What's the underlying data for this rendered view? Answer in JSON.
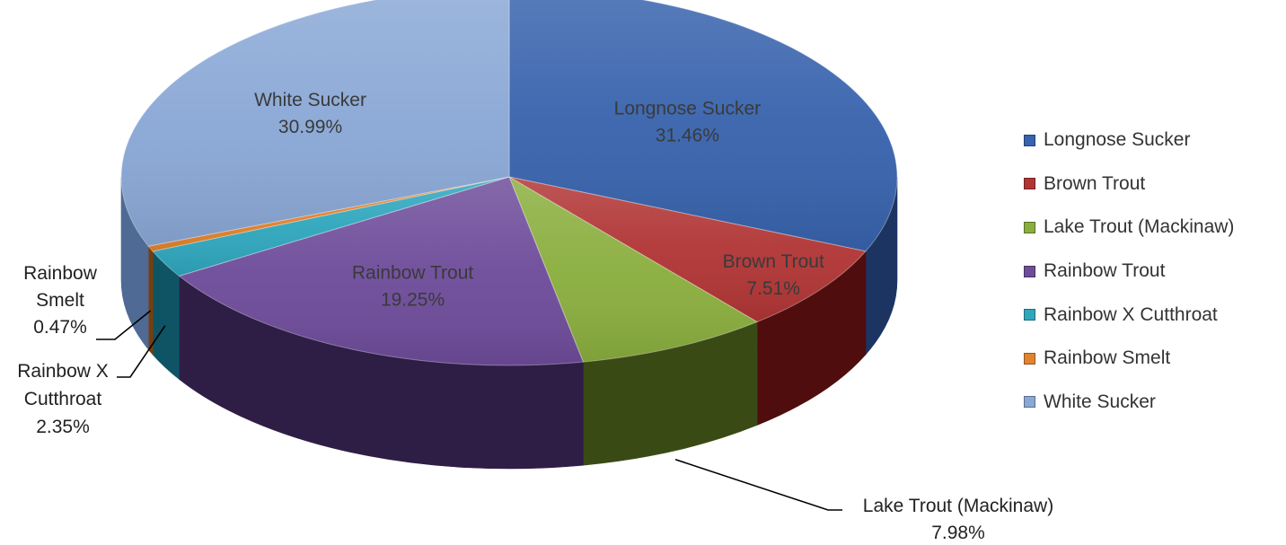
{
  "chart_data": {
    "type": "pie",
    "style": "3d-exploded-perspective",
    "slices": [
      {
        "key": "longnose",
        "label": "Longnose Sucker",
        "value": 31.46,
        "display": "31.46%",
        "color": "#3863AD",
        "dark": "#1C3462"
      },
      {
        "key": "brown",
        "label": "Brown Trout",
        "value": 7.51,
        "display": "7.51%",
        "color": "#B13535",
        "dark": "#4F0D0D"
      },
      {
        "key": "lake",
        "label": "Lake Trout (Mackinaw)",
        "value": 7.98,
        "display": "7.98%",
        "color": "#8AAE3E",
        "dark": "#3A4A14"
      },
      {
        "key": "rainbow",
        "label": "Rainbow Trout",
        "value": 19.25,
        "display": "19.25%",
        "color": "#6E4C9A",
        "dark": "#2E1D45"
      },
      {
        "key": "rxc",
        "label": "Rainbow X Cutthroat",
        "value": 2.35,
        "display": "2.35%",
        "color": "#2FA6BD",
        "dark": "#0F5464"
      },
      {
        "key": "smelt",
        "label": "Rainbow Smelt",
        "value": 0.47,
        "display": "0.47%",
        "color": "#E2832E",
        "dark": "#7A3E0D"
      },
      {
        "key": "white",
        "label": "White Sucker",
        "value": 30.99,
        "display": "30.99%",
        "color": "#8AA8D6",
        "dark": "#4F6A94"
      }
    ],
    "inside_labels": {
      "longnose": [
        "Longnose Sucker",
        "31.46%"
      ],
      "brown": [
        "Brown Trout",
        "7.51%"
      ],
      "rainbow": [
        "Rainbow Trout",
        "19.25%"
      ],
      "white": [
        "White Sucker",
        "30.99%"
      ]
    },
    "outside_labels": {
      "lake": [
        "Lake Trout (Mackinaw)",
        "7.98%"
      ],
      "smelt": [
        "Rainbow",
        "Smelt",
        "0.47%"
      ],
      "rxc": [
        "Rainbow X",
        "Cutthroat",
        "2.35%"
      ]
    },
    "legend": {
      "position": "right",
      "entries": [
        "Longnose Sucker",
        "Brown Trout",
        "Lake Trout (Mackinaw)",
        "Rainbow Trout",
        "Rainbow X Cutthroat",
        "Rainbow Smelt",
        "White Sucker"
      ]
    }
  }
}
